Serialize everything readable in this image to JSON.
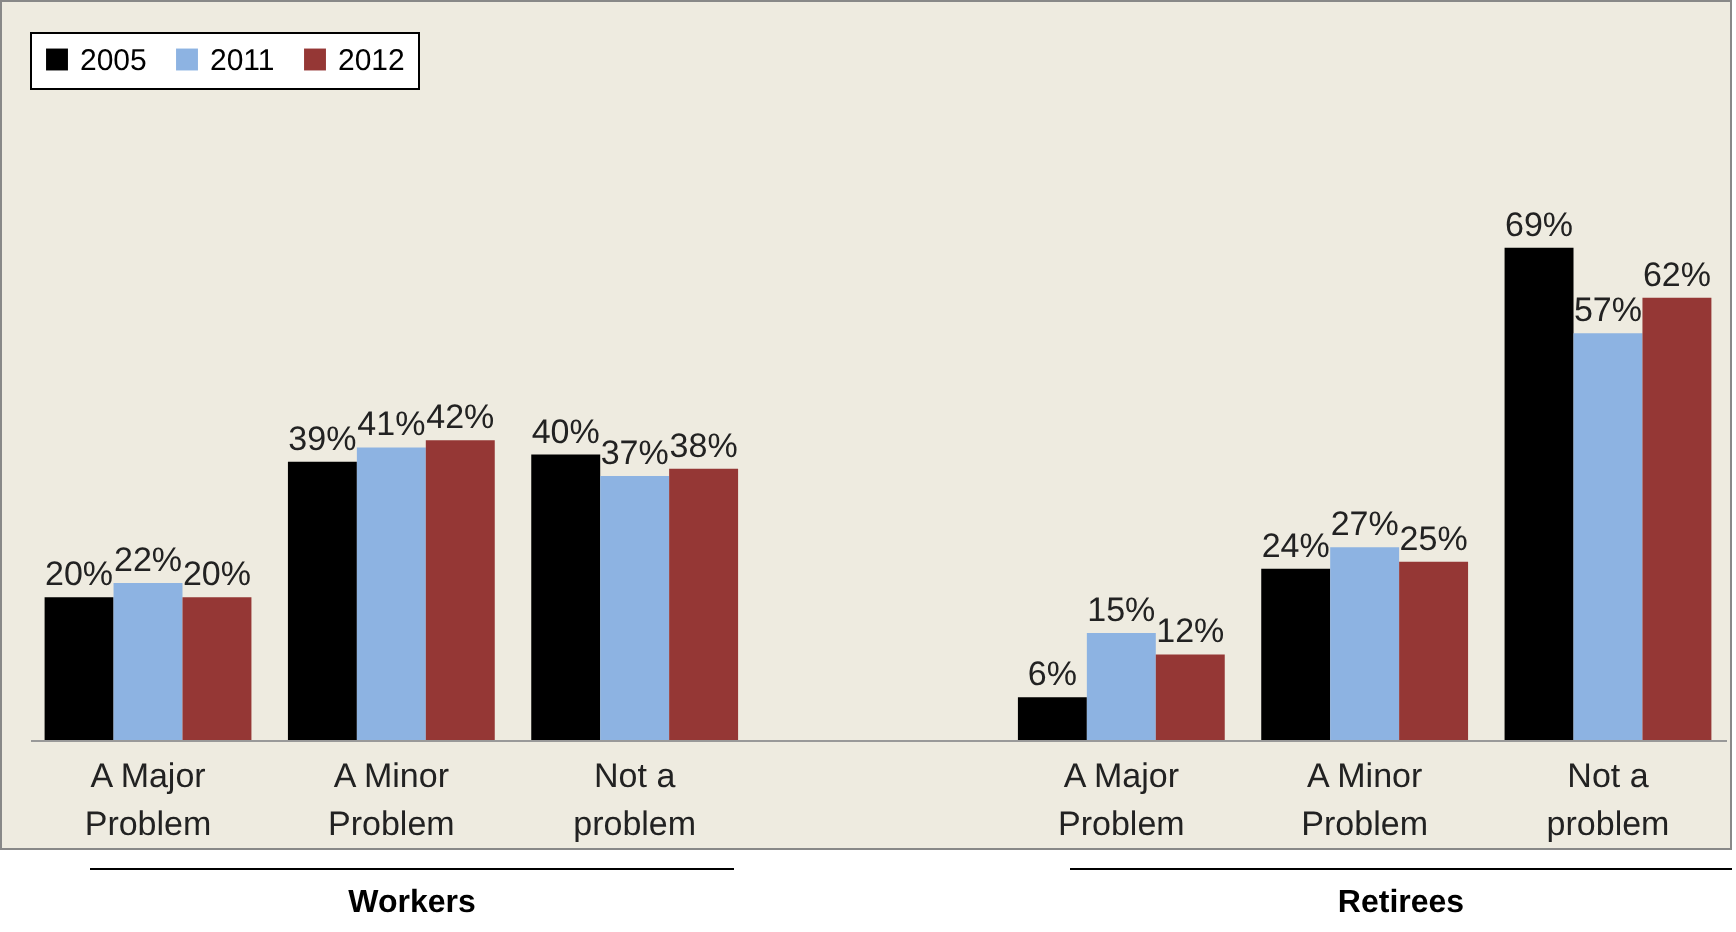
{
  "chart_data": {
    "type": "bar",
    "categories": [
      "A Major\nProblem",
      "A Minor\nProblem",
      "Not a\nproblem",
      null,
      "A Major\nProblem",
      "A Minor\nProblem",
      "Not a\nproblem"
    ],
    "series": [
      {
        "name": "2005",
        "color": "#000000",
        "values": [
          20,
          39,
          40,
          null,
          6,
          24,
          69
        ],
        "value_labels": [
          "20%",
          "39%",
          "40%",
          null,
          "6%",
          "24%",
          "69%"
        ]
      },
      {
        "name": "2011",
        "color": "#8db3e2",
        "values": [
          22,
          41,
          37,
          null,
          15,
          27,
          57
        ],
        "value_labels": [
          "22%",
          "41%",
          "37%",
          null,
          "15%",
          "27%",
          "57%"
        ]
      },
      {
        "name": "2012",
        "color": "#953735",
        "values": [
          20,
          42,
          38,
          null,
          12,
          25,
          62
        ],
        "value_labels": [
          "20%",
          "42%",
          "38%",
          null,
          "12%",
          "25%",
          "62%"
        ]
      }
    ],
    "legend": "top",
    "annotations": [
      "Workers",
      "Retirees"
    ]
  }
}
